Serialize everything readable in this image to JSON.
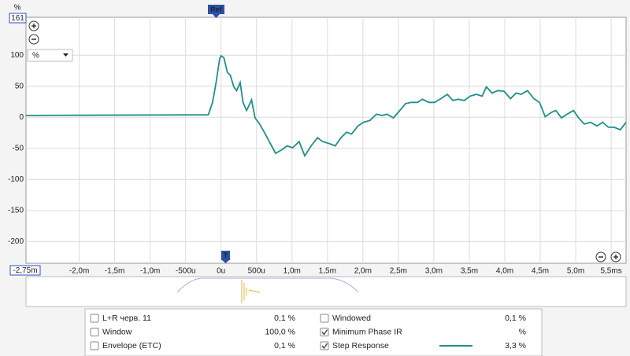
{
  "chart_data": {
    "type": "line",
    "y_unit": "%",
    "unit_select": "%",
    "x_start_label": "-2,75m",
    "markers": {
      "ref": "Ref",
      "time": "T"
    },
    "xlim": [
      -2.75,
      5.71
    ],
    "ylim": [
      -235,
      161
    ],
    "xticks": [
      {
        "value": -2,
        "label": "-2,0m"
      },
      {
        "value": -1.5,
        "label": "-1,5m"
      },
      {
        "value": -1,
        "label": "-1,0m"
      },
      {
        "value": -0.5,
        "label": "-500u"
      },
      {
        "value": 0,
        "label": "0u"
      },
      {
        "value": 0.5,
        "label": "500u"
      },
      {
        "value": 1,
        "label": "1,0m"
      },
      {
        "value": 1.5,
        "label": "1,5m"
      },
      {
        "value": 2,
        "label": "2,0m"
      },
      {
        "value": 2.5,
        "label": "2,5m"
      },
      {
        "value": 3,
        "label": "3,0m"
      },
      {
        "value": 3.5,
        "label": "3,5m"
      },
      {
        "value": 4,
        "label": "4,0m"
      },
      {
        "value": 4.5,
        "label": "4,5m"
      },
      {
        "value": 5,
        "label": "5,0m"
      },
      {
        "value": 5.5,
        "label": "5,5ms"
      }
    ],
    "yticks": [
      -200,
      -150,
      -100,
      -50,
      0,
      50,
      100
    ],
    "grid": true,
    "x": [
      -2.75,
      -0.18,
      -0.12,
      -0.07,
      -0.02,
      0,
      0.04,
      0.09,
      0.13,
      0.18,
      0.22,
      0.27,
      0.31,
      0.36,
      0.39,
      0.43,
      0.48,
      0.54,
      0.61,
      0.68,
      0.77,
      0.86,
      0.93,
      1.01,
      1.1,
      1.18,
      1.27,
      1.36,
      1.43,
      1.52,
      1.61,
      1.69,
      1.77,
      1.84,
      1.93,
      2.01,
      2.1,
      2.19,
      2.27,
      2.34,
      2.43,
      2.52,
      2.6,
      2.68,
      2.77,
      2.84,
      2.93,
      3.01,
      3.1,
      3.19,
      3.27,
      3.34,
      3.43,
      3.51,
      3.6,
      3.68,
      3.74,
      3.82,
      3.9,
      3.99,
      4.08,
      4.16,
      4.23,
      4.32,
      4.41,
      4.49,
      4.57,
      4.66,
      4.72,
      4.8,
      4.88,
      4.97,
      5.04,
      5.12,
      5.21,
      5.3,
      5.38,
      5.46,
      5.54,
      5.63,
      5.71
    ],
    "series": [
      {
        "name": "Step Response",
        "color": "#1f8f8c",
        "values": [
          3,
          4,
          24,
          56,
          94,
          99,
          96,
          72,
          68,
          49,
          43,
          56,
          24,
          11,
          18,
          28,
          -1,
          -10,
          -24,
          -39,
          -58,
          -52,
          -46,
          -49,
          -39,
          -62,
          -46,
          -33,
          -39,
          -42,
          -46,
          -33,
          -24,
          -27,
          -14,
          -8,
          -5,
          5,
          3,
          5,
          -1,
          11,
          22,
          24,
          24,
          29,
          24,
          24,
          30,
          37,
          27,
          29,
          27,
          34,
          37,
          34,
          49,
          39,
          43,
          42,
          30,
          39,
          37,
          43,
          30,
          24,
          1,
          8,
          11,
          -1,
          5,
          11,
          -1,
          -11,
          -8,
          -14,
          -8,
          -16,
          -16,
          -20,
          -8
        ]
      }
    ],
    "traces": [
      {
        "name": "L+R черв. 11",
        "value": "0,1 %",
        "color": "#c9a400",
        "checked": false
      },
      {
        "name": "Window",
        "value": "100,0 %",
        "color": "#2a2ad6",
        "checked": false
      },
      {
        "name": "Envelope (ETC)",
        "value": "0,1 %",
        "color": "#cc22cc",
        "checked": false
      },
      {
        "name": "Windowed",
        "value": "0,1 %",
        "color": "#c9a400",
        "checked": false
      },
      {
        "name": "Minimum Phase IR",
        "value": "%",
        "color": "#999999",
        "checked": true
      },
      {
        "name": "Step Response",
        "value": "3,3 %",
        "color": "#1f8f8c",
        "checked": true
      }
    ]
  }
}
